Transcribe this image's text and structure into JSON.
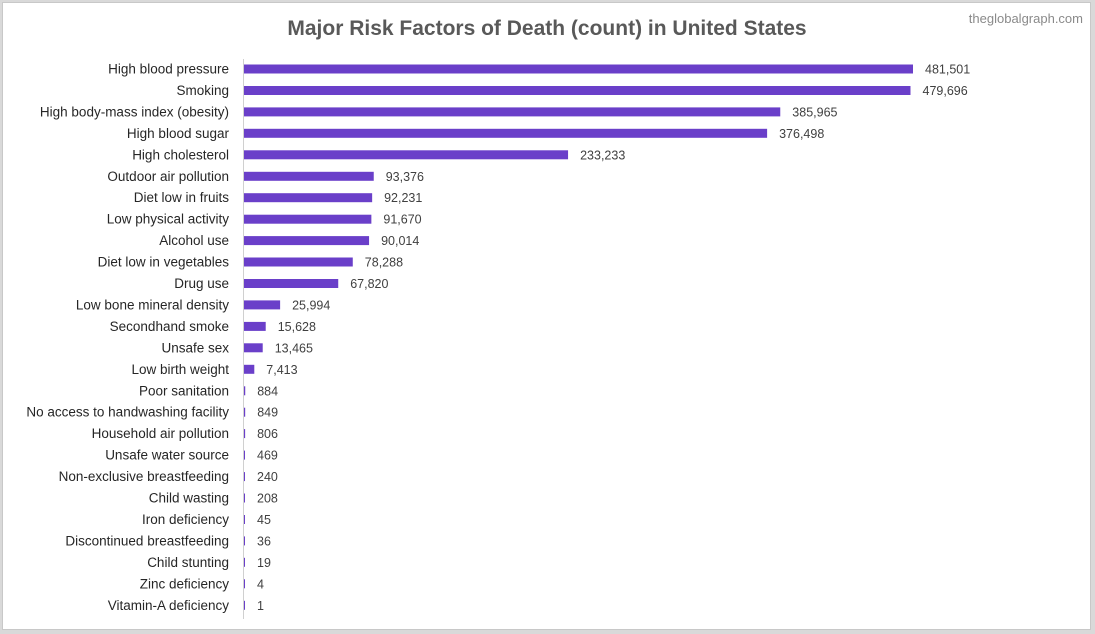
{
  "watermark": "theglobalgraph.com",
  "chart_data": {
    "type": "bar",
    "orientation": "horizontal",
    "title": "Major Risk Factors of Death (count) in United States",
    "xlabel": "",
    "ylabel": "",
    "grid": false,
    "legend": "none",
    "bar_color": "#6a3fc9",
    "xlim": [
      0,
      481501
    ],
    "categories": [
      "High blood pressure",
      "Smoking",
      "High body-mass index (obesity)",
      "High blood sugar",
      "High cholesterol",
      "Outdoor air pollution",
      "Diet low in fruits",
      "Low physical activity",
      "Alcohol use",
      "Diet low in vegetables",
      "Drug use",
      "Low bone mineral density",
      "Secondhand smoke",
      "Unsafe sex",
      "Low birth weight",
      "Poor sanitation",
      "No access to handwashing facility",
      "Household air pollution",
      "Unsafe water source",
      "Non-exclusive breastfeeding",
      "Child wasting",
      "Iron deficiency",
      "Discontinued breastfeeding",
      "Child stunting",
      "Zinc deficiency",
      "Vitamin-A deficiency"
    ],
    "values": [
      481501,
      479696,
      385965,
      376498,
      233233,
      93376,
      92231,
      91670,
      90014,
      78288,
      67820,
      25994,
      15628,
      13465,
      7413,
      884,
      849,
      806,
      469,
      240,
      208,
      45,
      36,
      19,
      4,
      1
    ],
    "value_labels": [
      "481,501",
      "479,696",
      "385,965",
      "376,498",
      "233,233",
      "93,376",
      "92,231",
      "91,670",
      "90,014",
      "78,288",
      "67,820",
      "25,994",
      "15,628",
      "13,465",
      "7,413",
      "884",
      "849",
      "806",
      "469",
      "240",
      "208",
      "45",
      "36",
      "19",
      "4",
      "1"
    ]
  }
}
